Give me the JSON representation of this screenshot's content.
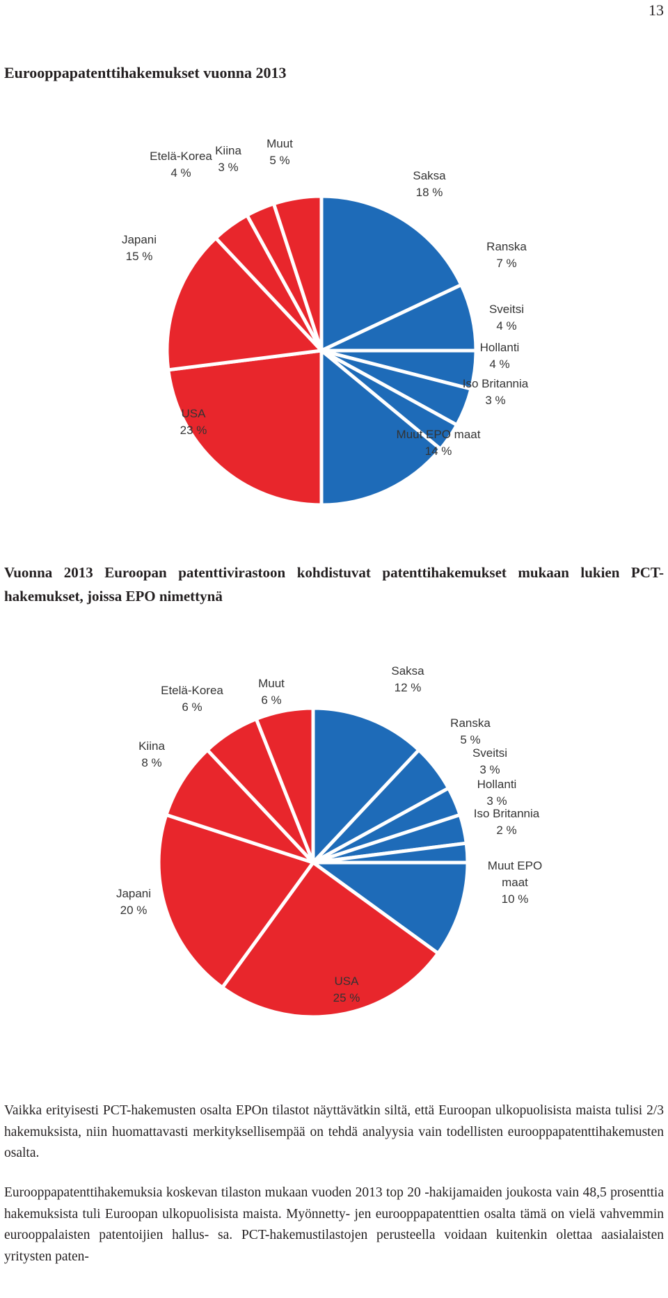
{
  "page_number": "13",
  "heading": "Eurooppapatenttihakemukset vuonna 2013",
  "colors": {
    "europe": "#1e6bb8",
    "non_europe": "#e8262c",
    "separator": "#ffffff"
  },
  "chart_data": [
    {
      "type": "pie",
      "title": "",
      "slices": [
        {
          "name": "Saksa",
          "value": 18,
          "label": "18 %",
          "color": "#1e6bb8"
        },
        {
          "name": "Ranska",
          "value": 7,
          "label": "7 %",
          "color": "#1e6bb8"
        },
        {
          "name": "Sveitsi",
          "value": 4,
          "label": "4 %",
          "color": "#1e6bb8"
        },
        {
          "name": "Hollanti",
          "value": 4,
          "label": "4 %",
          "color": "#1e6bb8"
        },
        {
          "name": "Iso Britannia",
          "value": 3,
          "label": "3 %",
          "color": "#1e6bb8"
        },
        {
          "name": "Muut EPO maat",
          "value": 14,
          "label": "14 %",
          "color": "#1e6bb8"
        },
        {
          "name": "USA",
          "value": 23,
          "label": "23 %",
          "color": "#e8262c"
        },
        {
          "name": "Japani",
          "value": 15,
          "label": "15 %",
          "color": "#e8262c"
        },
        {
          "name": "Etelä-Korea",
          "value": 4,
          "label": "4 %",
          "color": "#e8262c"
        },
        {
          "name": "Kiina",
          "value": 3,
          "label": "3 %",
          "color": "#e8262c"
        },
        {
          "name": "Muut",
          "value": 5,
          "label": "5 %",
          "color": "#e8262c"
        }
      ]
    },
    {
      "type": "pie",
      "title": "",
      "slices": [
        {
          "name": "Saksa",
          "value": 12,
          "label": "12 %",
          "color": "#1e6bb8"
        },
        {
          "name": "Ranska",
          "value": 5,
          "label": "5 %",
          "color": "#1e6bb8"
        },
        {
          "name": "Sveitsi",
          "value": 3,
          "label": "3 %",
          "color": "#1e6bb8"
        },
        {
          "name": "Hollanti",
          "value": 3,
          "label": "3 %",
          "color": "#1e6bb8"
        },
        {
          "name": "Iso Britannia",
          "value": 2,
          "label": "2 %",
          "color": "#1e6bb8"
        },
        {
          "name": "Muut EPO maat",
          "value": 10,
          "label": "10 %",
          "color": "#1e6bb8",
          "lines": [
            "Muut EPO",
            "maat"
          ]
        },
        {
          "name": "USA",
          "value": 25,
          "label": "25 %",
          "color": "#e8262c"
        },
        {
          "name": "Japani",
          "value": 20,
          "label": "20 %",
          "color": "#e8262c"
        },
        {
          "name": "Kiina",
          "value": 8,
          "label": "8 %",
          "color": "#e8262c"
        },
        {
          "name": "Etelä-Korea",
          "value": 6,
          "label": "6 %",
          "color": "#e8262c"
        },
        {
          "name": "Muut",
          "value": 6,
          "label": "6 %",
          "color": "#e8262c"
        }
      ]
    }
  ],
  "caption": "Vuonna 2013 Euroopan patenttivirastoon kohdistuvat patenttihakemukset mukaan lukien PCT-hakemukset, joissa EPO nimettynä",
  "paragraphs": [
    "Vaikka erityisesti PCT-hakemusten osalta EPOn tilastot näyttävätkin siltä, että Euroopan ulkopuolisista maista tulisi 2/3 hakemuksista, niin huomattavasti merkityksellisempää on tehdä analyysia vain todellisten eurooppapatenttihakemusten osalta.",
    "Eurooppapatenttihakemuksia koskevan tilaston mukaan vuoden 2013 top 20 -hakijamaiden joukosta vain 48,5 prosenttia hakemuksista tuli Euroopan ulkopuolisista maista. Myönnetty- jen eurooppapatenttien osalta tämä on vielä vahvemmin eurooppalaisten patentoijien hallus- sa. PCT-hakemustilastojen perusteella voidaan kuitenkin olettaa aasialaisten yritysten paten-"
  ]
}
